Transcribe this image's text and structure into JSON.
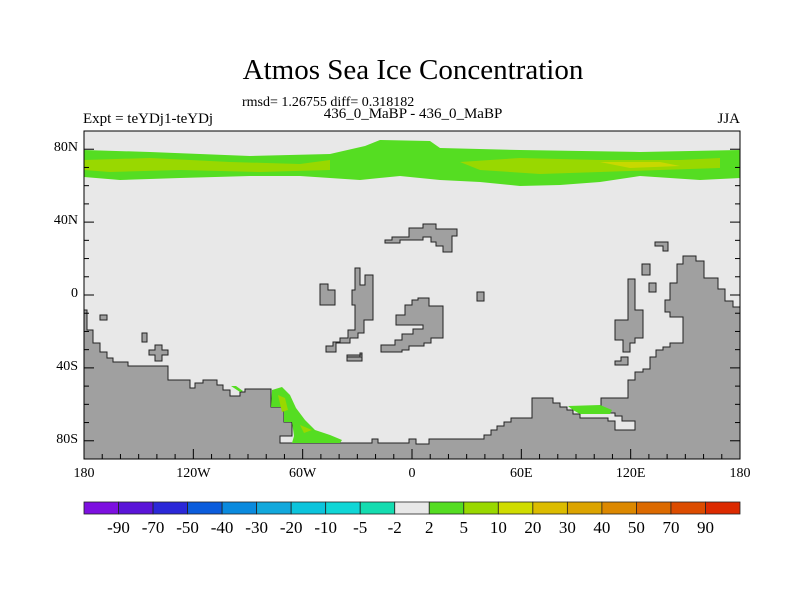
{
  "title": "Atmos Sea Ice Concentration",
  "stats": "rmsd= 1.26755 diff= 0.318182",
  "center_string": "436_0_MaBP - 436_0_MaBP",
  "left_string": "Expt = teYDj1-teYDj",
  "right_string": "JJA",
  "map": {
    "lat_labels": [
      "80N",
      "40N",
      "0",
      "40S",
      "80S"
    ],
    "lat_values": [
      80,
      40,
      0,
      -40,
      -80
    ],
    "lon_labels": [
      "180",
      "120W",
      "60W",
      "0",
      "60E",
      "120E",
      "180"
    ],
    "lon_values": [
      -180,
      -120,
      -60,
      0,
      60,
      120,
      180
    ],
    "land_color": "#a0a0a0",
    "ocean_color": "#e8e8e8"
  },
  "colorbar": {
    "labels": [
      "-90",
      "-70",
      "-50",
      "-40",
      "-30",
      "-20",
      "-10",
      "-5",
      "-2",
      "2",
      "5",
      "10",
      "20",
      "30",
      "40",
      "50",
      "70",
      "90"
    ],
    "colors": [
      "#7d10e0",
      "#5a14d8",
      "#2b28d8",
      "#0b5cdc",
      "#0a8ade",
      "#12a8dc",
      "#0cc4dc",
      "#10d6d6",
      "#14dcb0",
      "#e8e8e8",
      "#55dd22",
      "#99d800",
      "#d0dc00",
      "#dcbc00",
      "#dca400",
      "#dc8800",
      "#dc6a00",
      "#dc4c00",
      "#dc2a00"
    ]
  }
}
